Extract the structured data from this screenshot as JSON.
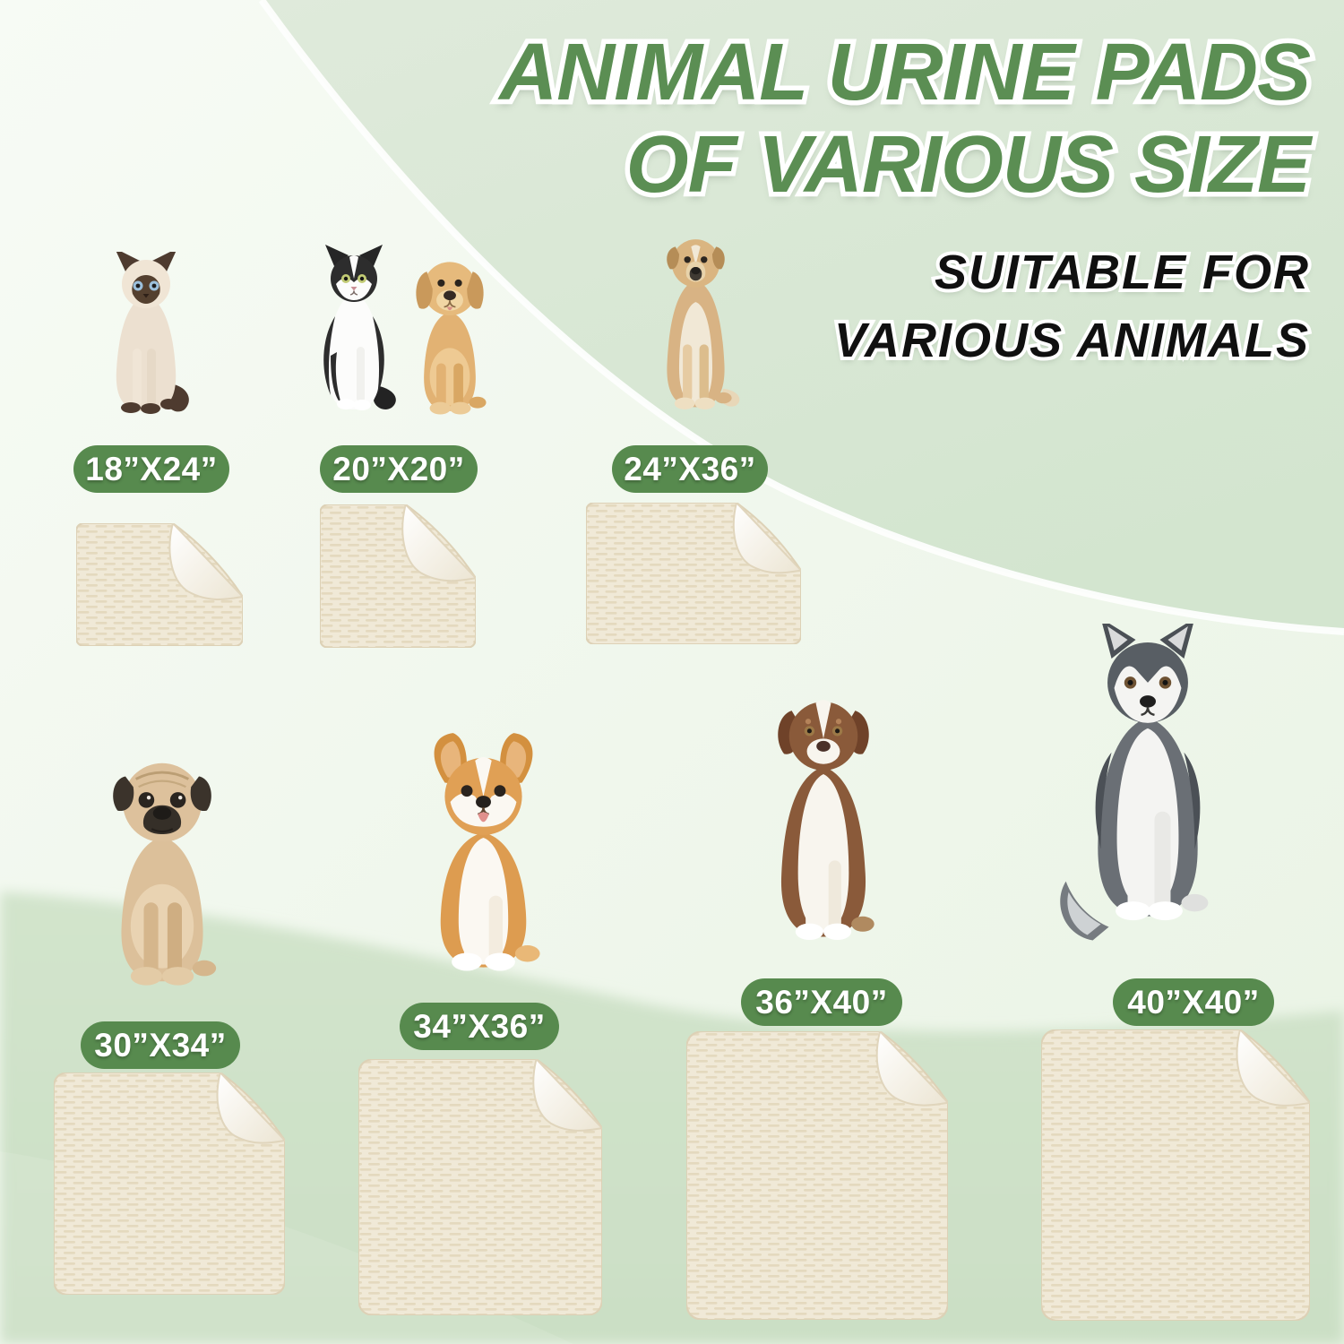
{
  "header": {
    "title_line1": "ANIMAL URINE PADS",
    "title_line2": "OF VARIOUS SIZE",
    "subtitle_line1": "SUITABLE FOR",
    "subtitle_line2": "VARIOUS ANIMALS"
  },
  "colors": {
    "title_green": "#5b8e53",
    "badge_green": "#578a4e",
    "subtitle_black": "#101010",
    "background_mint_top": "#dce9d8",
    "background_mint_bottom": "#cfe2ca",
    "background_light": "#f5faf3",
    "pad_cream": "#f0e9d7",
    "pad_texture": "#dccfae",
    "pad_underside_white": "#f7f4ec"
  },
  "items": [
    {
      "size_label": "18”X24”",
      "animals": [
        "siamese-cat"
      ]
    },
    {
      "size_label": "20”X20”",
      "animals": [
        "tuxedo-cat",
        "labrador-puppy"
      ]
    },
    {
      "size_label": "24”X36”",
      "animals": [
        "tan-mixed-breed-dog"
      ]
    },
    {
      "size_label": "30”X34”",
      "animals": [
        "pug"
      ]
    },
    {
      "size_label": "34”X36”",
      "animals": [
        "corgi"
      ]
    },
    {
      "size_label": "36”X40”",
      "animals": [
        "australian-shepherd"
      ]
    },
    {
      "size_label": "40”X40”",
      "animals": [
        "siberian-husky"
      ]
    }
  ]
}
